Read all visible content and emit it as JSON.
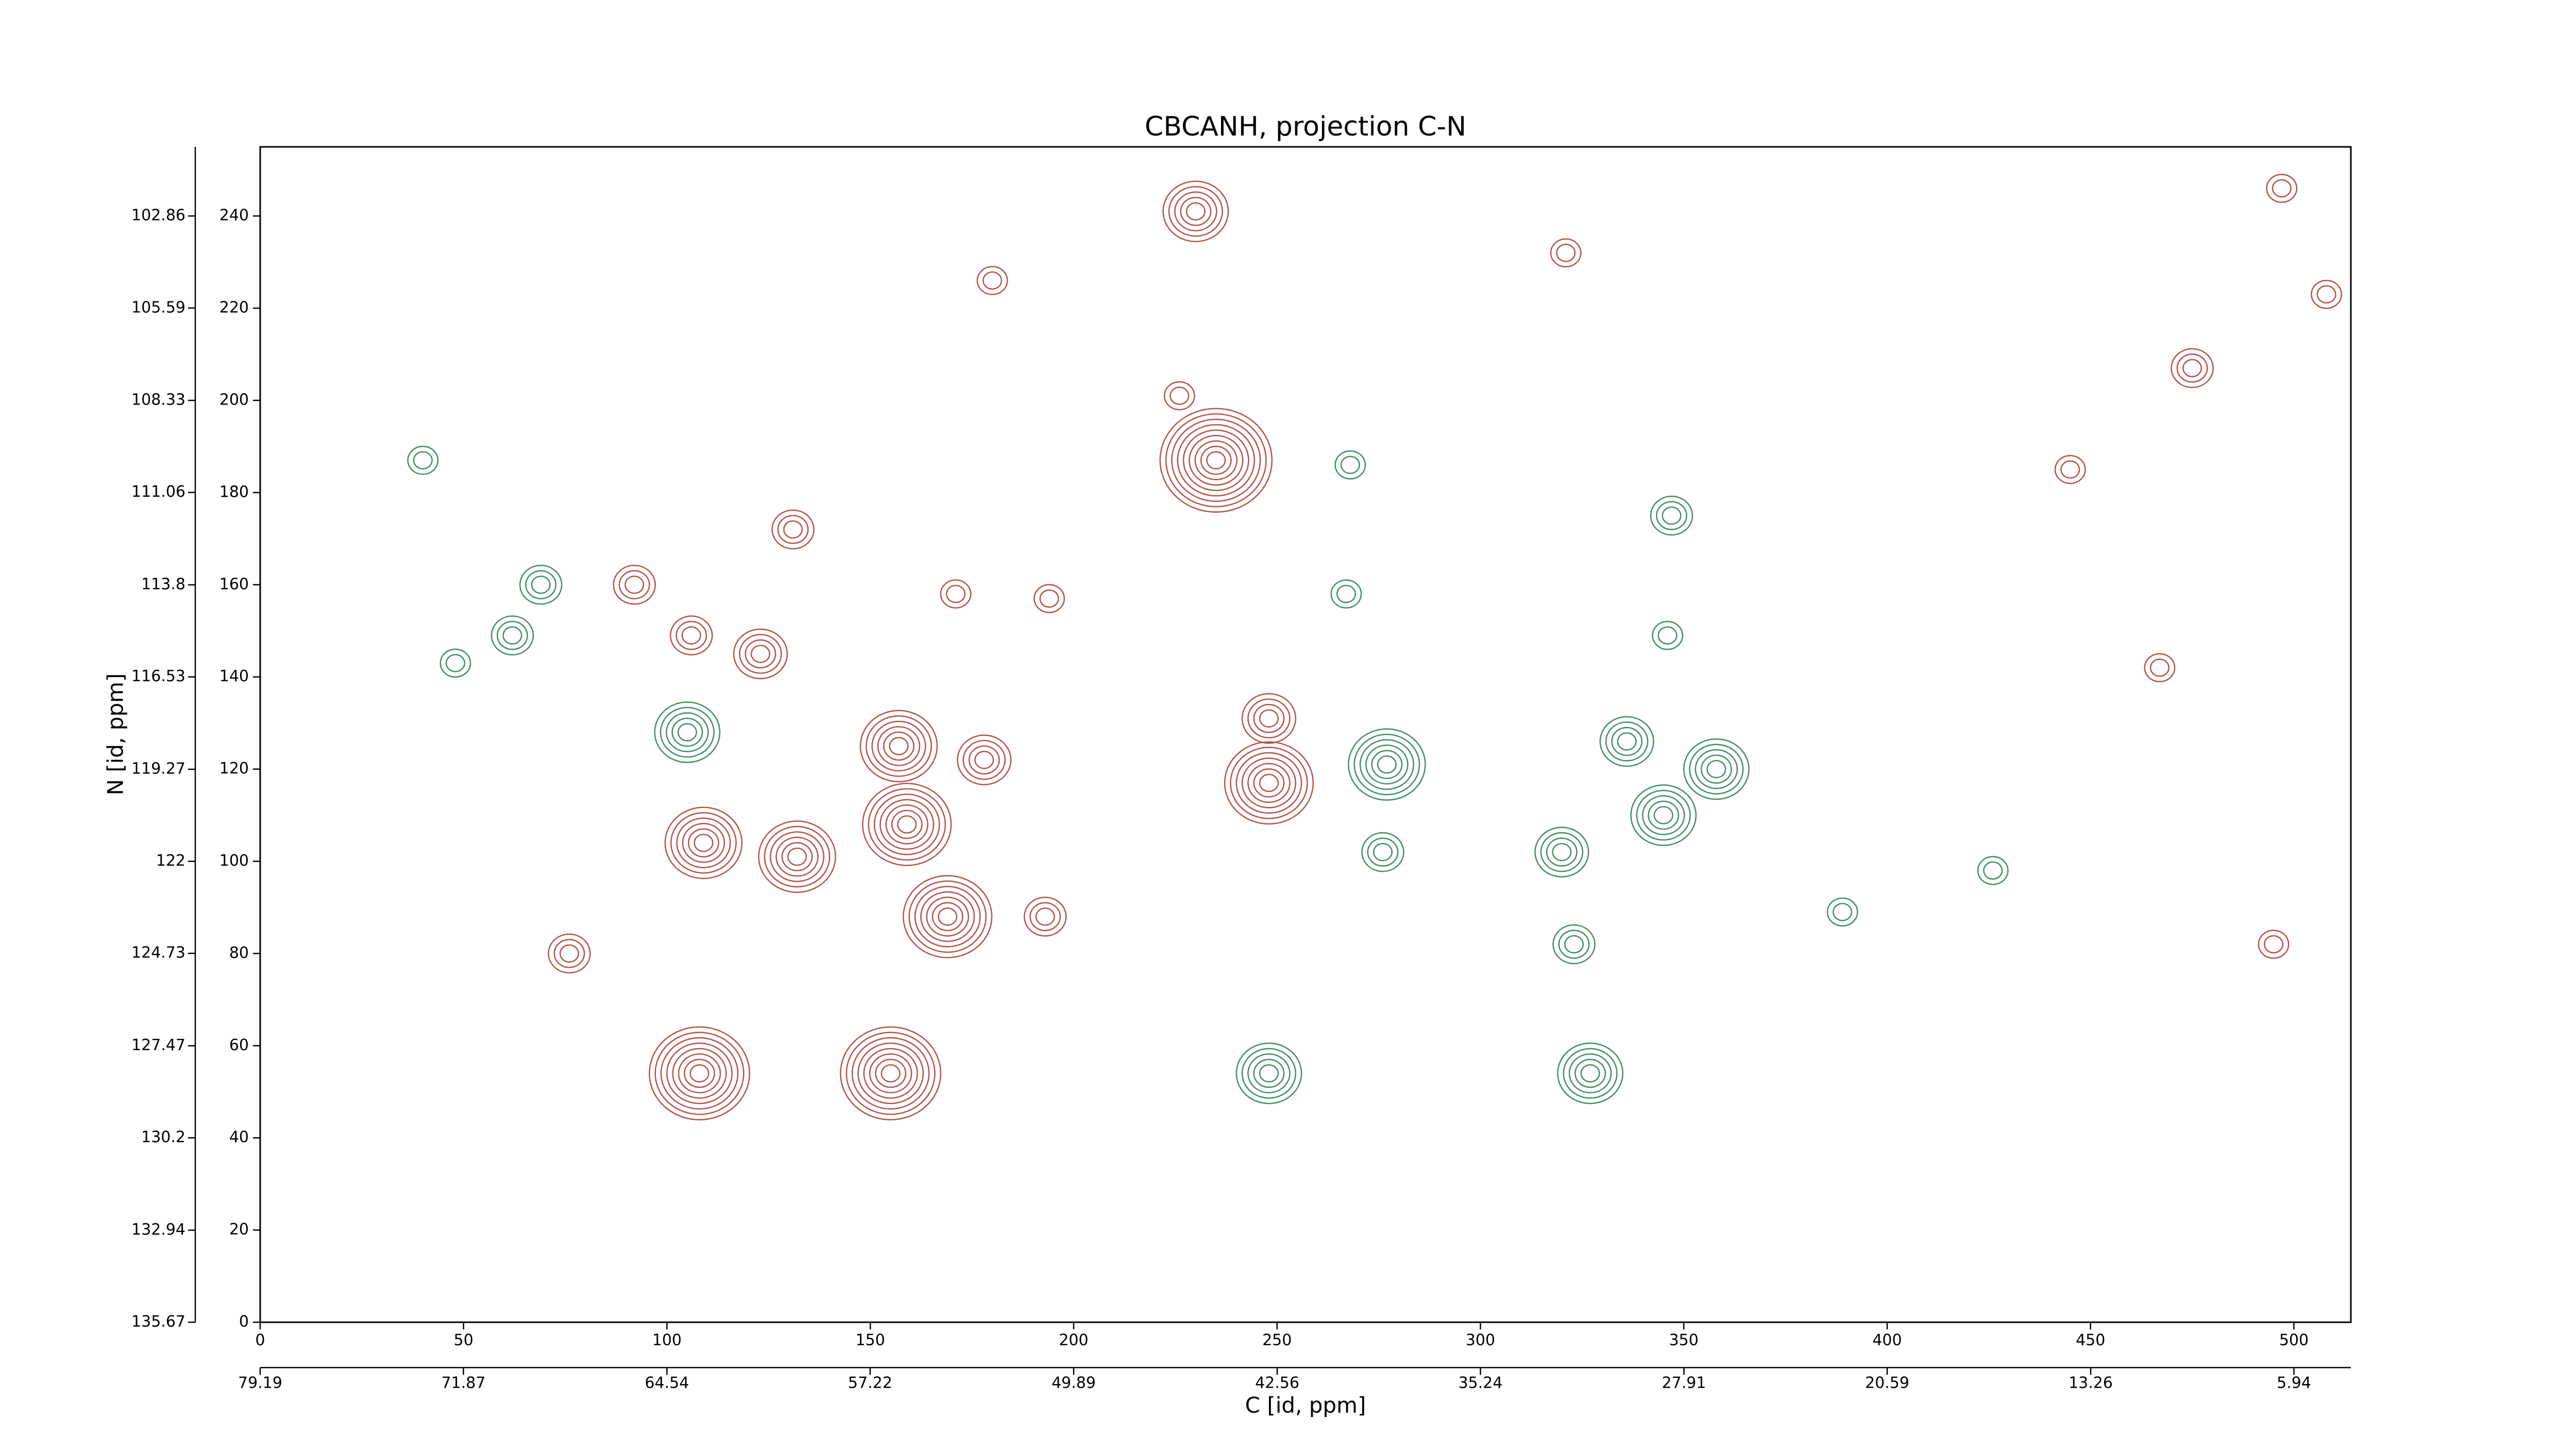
{
  "chart_data": {
    "type": "contour",
    "title": "CBCANH, projection C-N",
    "xlabel": "C [id, ppm]",
    "ylabel": "N [id, ppm]",
    "xlim": [
      0,
      514
    ],
    "xticks": [
      0,
      50,
      100,
      150,
      200,
      250,
      300,
      350,
      400,
      450,
      500
    ],
    "ylim": [
      0,
      255
    ],
    "yticks": [
      0,
      20,
      40,
      60,
      80,
      100,
      120,
      140,
      160,
      180,
      200,
      220,
      240
    ],
    "x2lim": [
      79.19,
      3.89
    ],
    "x2ticks": [
      79.19,
      71.87,
      64.54,
      57.22,
      49.89,
      42.56,
      35.24,
      27.91,
      20.59,
      13.26,
      5.94
    ],
    "y2lim": [
      135.67,
      100.81
    ],
    "y2ticks": [
      135.67,
      132.94,
      130.2,
      127.47,
      124.73,
      122.0,
      119.27,
      116.53,
      113.8,
      111.06,
      108.33,
      105.59,
      102.86
    ],
    "series": [
      {
        "color": "#b5524a",
        "x": [
          230,
          235,
          226,
          109,
          132,
          159,
          157,
          178,
          169,
          155,
          108,
          248,
          248,
          193,
          123,
          92,
          131,
          106,
          76,
          171,
          194,
          467,
          495,
          475,
          508,
          497,
          445,
          180,
          321
        ],
        "y": [
          241,
          187,
          201,
          104,
          101,
          108,
          125,
          122,
          88,
          54,
          54,
          117,
          131,
          88,
          145,
          160,
          172,
          149,
          80,
          158,
          157,
          142,
          82,
          207,
          223,
          246,
          185,
          226,
          232
        ],
        "levels": [
          5,
          9,
          2,
          6,
          6,
          7,
          6,
          4,
          7,
          8,
          8,
          7,
          4,
          3,
          4,
          3,
          3,
          3,
          3,
          2,
          2,
          2,
          2,
          3,
          2,
          2,
          2,
          2,
          2
        ]
      },
      {
        "color": "#3f8f5f",
        "x": [
          40,
          69,
          62,
          48,
          105,
          248,
          277,
          276,
          327,
          320,
          345,
          358,
          336,
          346,
          347,
          267,
          426,
          389,
          323,
          268
        ],
        "y": [
          187,
          160,
          149,
          143,
          128,
          54,
          121,
          102,
          54,
          102,
          110,
          120,
          126,
          149,
          175,
          158,
          98,
          89,
          82,
          186
        ],
        "levels": [
          2,
          3,
          3,
          2,
          5,
          5,
          6,
          3,
          5,
          4,
          5,
          5,
          4,
          2,
          3,
          2,
          2,
          2,
          3,
          2
        ]
      }
    ]
  }
}
